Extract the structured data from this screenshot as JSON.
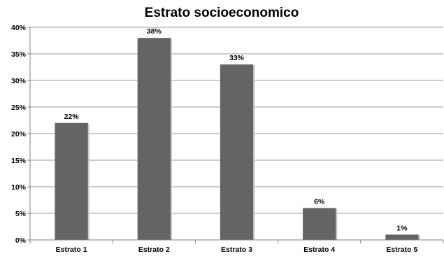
{
  "chart_data": {
    "type": "bar",
    "title": "Estrato socioeconomico",
    "xlabel": "",
    "ylabel": "",
    "categories": [
      "Estrato 1",
      "Estrato 2",
      "Estrato 3",
      "Estrato 4",
      "Estrato 5"
    ],
    "values": [
      22,
      38,
      33,
      6,
      1
    ],
    "data_labels": [
      "22%",
      "38%",
      "33%",
      "6%",
      "1%"
    ],
    "ylim": [
      0,
      40
    ],
    "yticks": [
      0,
      5,
      10,
      15,
      20,
      25,
      30,
      35,
      40
    ],
    "ytick_labels": [
      "0%",
      "5%",
      "10%",
      "15%",
      "20%",
      "25%",
      "30%",
      "35%",
      "40%"
    ],
    "grid": true,
    "legend": "none",
    "bar_color": "#646464",
    "grid_color": "#9a9a9a"
  }
}
